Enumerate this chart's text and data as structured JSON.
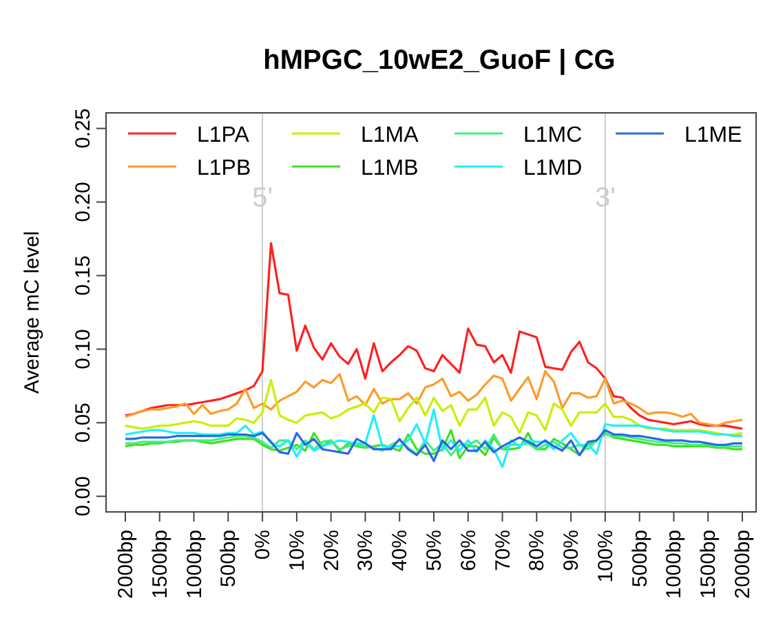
{
  "chart_data": {
    "type": "line",
    "title": "hMPGC_10wE2_GuoF | CG",
    "ylabel": "Average mC level",
    "categories": [
      "2000bp",
      null,
      null,
      null,
      "1500bp",
      null,
      null,
      null,
      "1000bp",
      null,
      null,
      null,
      "500bp",
      null,
      null,
      null,
      "0%",
      null,
      null,
      null,
      "10%",
      null,
      null,
      null,
      "20%",
      null,
      null,
      null,
      "30%",
      null,
      null,
      null,
      "40%",
      null,
      null,
      null,
      "50%",
      null,
      null,
      null,
      "60%",
      null,
      null,
      null,
      "70%",
      null,
      null,
      null,
      "80%",
      null,
      null,
      null,
      "90%",
      null,
      null,
      null,
      "100%",
      null,
      null,
      null,
      "500bp",
      null,
      null,
      null,
      "1000bp",
      null,
      null,
      null,
      "1500bp",
      null,
      null,
      null,
      "2000bp"
    ],
    "ylim": [
      -0.0106,
      0.2606
    ],
    "yticks": [
      {
        "value": 0,
        "label": "0.00"
      },
      {
        "value": 0.05,
        "label": "0.05"
      },
      {
        "value": 0.1,
        "label": "0.10"
      },
      {
        "value": 0.15,
        "label": "0.15"
      },
      {
        "value": 0.2,
        "label": "0.20"
      },
      {
        "value": 0.25,
        "label": "0.25"
      }
    ],
    "legend": "top",
    "line_style": "solid",
    "marker": "none",
    "ref_lines": [
      {
        "axis": "x",
        "value": "0%",
        "label": "5'",
        "color": "#cccccc"
      },
      {
        "axis": "x",
        "value": "100%",
        "label": "3'",
        "color": "#cccccc"
      }
    ],
    "series": [
      {
        "name": "L1PA",
        "color": "#ff2020",
        "values": [
          0.055,
          0.056,
          0.058,
          0.06,
          0.061,
          0.062,
          0.062,
          0.062,
          0.063,
          0.064,
          0.065,
          0.066,
          0.068,
          0.07,
          0.072,
          0.075,
          0.085,
          0.172,
          0.138,
          0.137,
          0.099,
          0.116,
          0.101,
          0.093,
          0.104,
          0.095,
          0.09,
          0.1,
          0.08,
          0.104,
          0.085,
          0.091,
          0.096,
          0.102,
          0.099,
          0.087,
          0.085,
          0.096,
          0.09,
          0.084,
          0.114,
          0.103,
          0.102,
          0.091,
          0.096,
          0.084,
          0.112,
          0.11,
          0.108,
          0.088,
          0.087,
          0.086,
          0.098,
          0.105,
          0.091,
          0.087,
          0.08,
          0.068,
          0.067,
          0.06,
          0.055,
          0.052,
          0.051,
          0.05,
          0.049,
          0.05,
          0.051,
          0.049,
          0.048,
          0.048,
          0.048,
          0.047,
          0.046
        ]
      },
      {
        "name": "L1PB",
        "color": "#ff9a28",
        "values": [
          0.054,
          0.056,
          0.058,
          0.059,
          0.059,
          0.06,
          0.061,
          0.063,
          0.056,
          0.062,
          0.056,
          0.058,
          0.059,
          0.063,
          0.073,
          0.06,
          0.063,
          0.059,
          0.065,
          0.068,
          0.071,
          0.078,
          0.074,
          0.079,
          0.077,
          0.083,
          0.065,
          0.068,
          0.062,
          0.073,
          0.063,
          0.066,
          0.066,
          0.07,
          0.063,
          0.074,
          0.076,
          0.08,
          0.068,
          0.071,
          0.065,
          0.069,
          0.076,
          0.082,
          0.08,
          0.065,
          0.073,
          0.081,
          0.066,
          0.085,
          0.078,
          0.06,
          0.07,
          0.07,
          0.067,
          0.068,
          0.08,
          0.063,
          0.065,
          0.063,
          0.06,
          0.056,
          0.057,
          0.057,
          0.056,
          0.054,
          0.056,
          0.05,
          0.049,
          0.048,
          0.05,
          0.051,
          0.052
        ]
      },
      {
        "name": "L1MA",
        "color": "#c8f000",
        "values": [
          0.048,
          0.047,
          0.046,
          0.047,
          0.048,
          0.048,
          0.049,
          0.05,
          0.051,
          0.05,
          0.048,
          0.048,
          0.048,
          0.053,
          0.052,
          0.05,
          0.057,
          0.079,
          0.055,
          0.052,
          0.05,
          0.055,
          0.056,
          0.057,
          0.053,
          0.055,
          0.059,
          0.061,
          0.063,
          0.057,
          0.067,
          0.066,
          0.051,
          0.06,
          0.067,
          0.055,
          0.067,
          0.058,
          0.062,
          0.048,
          0.059,
          0.059,
          0.067,
          0.048,
          0.057,
          0.054,
          0.043,
          0.057,
          0.055,
          0.045,
          0.063,
          0.059,
          0.048,
          0.057,
          0.057,
          0.057,
          0.063,
          0.054,
          0.054,
          0.052,
          0.048,
          0.046,
          0.046,
          0.046,
          0.045,
          0.045,
          0.045,
          0.045,
          0.044,
          0.043,
          0.042,
          0.042,
          0.043
        ]
      },
      {
        "name": "L1MB",
        "color": "#40e020",
        "values": [
          0.034,
          0.035,
          0.035,
          0.036,
          0.036,
          0.037,
          0.037,
          0.038,
          0.038,
          0.037,
          0.036,
          0.037,
          0.038,
          0.039,
          0.039,
          0.039,
          0.035,
          0.032,
          0.031,
          0.033,
          0.035,
          0.031,
          0.043,
          0.034,
          0.038,
          0.031,
          0.036,
          0.034,
          0.033,
          0.034,
          0.035,
          0.033,
          0.031,
          0.042,
          0.032,
          0.029,
          0.029,
          0.032,
          0.045,
          0.026,
          0.034,
          0.034,
          0.028,
          0.04,
          0.032,
          0.032,
          0.033,
          0.043,
          0.032,
          0.032,
          0.039,
          0.036,
          0.032,
          0.028,
          0.035,
          0.038,
          0.043,
          0.04,
          0.039,
          0.038,
          0.037,
          0.036,
          0.035,
          0.035,
          0.034,
          0.034,
          0.034,
          0.034,
          0.034,
          0.033,
          0.033,
          0.032,
          0.032
        ]
      },
      {
        "name": "L1MC",
        "color": "#40f080",
        "values": [
          0.036,
          0.036,
          0.037,
          0.037,
          0.037,
          0.037,
          0.038,
          0.038,
          0.038,
          0.038,
          0.038,
          0.039,
          0.04,
          0.041,
          0.041,
          0.04,
          0.037,
          0.033,
          0.038,
          0.038,
          0.032,
          0.038,
          0.032,
          0.037,
          0.038,
          0.032,
          0.034,
          0.035,
          0.034,
          0.033,
          0.031,
          0.035,
          0.038,
          0.033,
          0.029,
          0.038,
          0.031,
          0.036,
          0.028,
          0.035,
          0.035,
          0.038,
          0.032,
          0.042,
          0.032,
          0.035,
          0.035,
          0.036,
          0.032,
          0.035,
          0.037,
          0.033,
          0.033,
          0.035,
          0.032,
          0.038,
          0.042,
          0.041,
          0.041,
          0.04,
          0.039,
          0.038,
          0.037,
          0.037,
          0.036,
          0.036,
          0.035,
          0.035,
          0.035,
          0.034,
          0.034,
          0.034,
          0.034
        ]
      },
      {
        "name": "L1MD",
        "color": "#20f0f8",
        "values": [
          0.042,
          0.043,
          0.044,
          0.045,
          0.045,
          0.044,
          0.043,
          0.043,
          0.043,
          0.042,
          0.042,
          0.042,
          0.043,
          0.043,
          0.048,
          0.042,
          0.044,
          0.036,
          0.034,
          0.038,
          0.027,
          0.037,
          0.031,
          0.034,
          0.036,
          0.038,
          0.037,
          0.036,
          0.036,
          0.055,
          0.034,
          0.034,
          0.034,
          0.038,
          0.049,
          0.036,
          0.059,
          0.031,
          0.038,
          0.031,
          0.038,
          0.03,
          0.038,
          0.032,
          0.02,
          0.038,
          0.034,
          0.038,
          0.037,
          0.037,
          0.032,
          0.038,
          0.043,
          0.035,
          0.035,
          0.029,
          0.049,
          0.048,
          0.048,
          0.048,
          0.048,
          0.047,
          0.046,
          0.045,
          0.044,
          0.044,
          0.044,
          0.044,
          0.043,
          0.042,
          0.042,
          0.041,
          0.041
        ]
      },
      {
        "name": "L1ME",
        "color": "#2868e8",
        "values": [
          0.039,
          0.039,
          0.04,
          0.04,
          0.04,
          0.04,
          0.041,
          0.041,
          0.041,
          0.041,
          0.041,
          0.041,
          0.042,
          0.042,
          0.042,
          0.041,
          0.043,
          0.037,
          0.03,
          0.029,
          0.043,
          0.035,
          0.039,
          0.032,
          0.031,
          0.03,
          0.029,
          0.039,
          0.036,
          0.032,
          0.032,
          0.032,
          0.039,
          0.032,
          0.028,
          0.035,
          0.024,
          0.038,
          0.032,
          0.038,
          0.031,
          0.031,
          0.037,
          0.03,
          0.034,
          0.037,
          0.04,
          0.037,
          0.034,
          0.038,
          0.034,
          0.031,
          0.038,
          0.028,
          0.037,
          0.038,
          0.045,
          0.042,
          0.042,
          0.041,
          0.041,
          0.04,
          0.039,
          0.038,
          0.038,
          0.038,
          0.037,
          0.037,
          0.036,
          0.035,
          0.035,
          0.036,
          0.036
        ]
      }
    ]
  }
}
